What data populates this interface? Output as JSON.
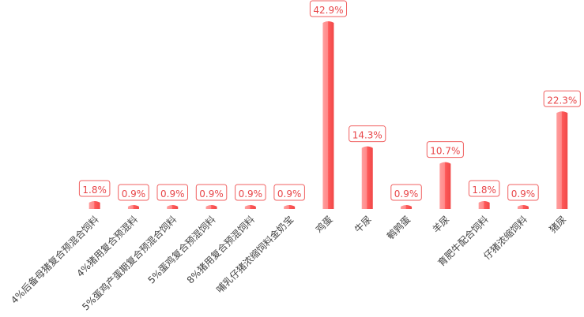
{
  "chart_data": {
    "type": "bar",
    "categories": [
      "4%后备母猪复合预混合饲料",
      "4%猪用复合预混料",
      "5%蛋鸡产蛋期复合预混合饲料",
      "5%蛋鸡复合预混饲料",
      "8%猪用复合预混饲料",
      "哺乳仔猪浓缩饲料金奶宝",
      "鸡蛋",
      "牛尿",
      "鹌鹑蛋",
      "羊尿",
      "育肥牛配合饲料",
      "仔猪浓缩饲料",
      "猪尿"
    ],
    "values": [
      1.8,
      0.9,
      0.9,
      0.9,
      0.9,
      0.9,
      42.9,
      14.3,
      0.9,
      10.7,
      1.8,
      0.9,
      22.3
    ],
    "value_labels": [
      "1.8%",
      "0.9%",
      "0.9%",
      "0.9%",
      "0.9%",
      "0.9%",
      "42.9%",
      "14.3%",
      "0.9%",
      "10.7%",
      "1.8%",
      "0.9%",
      "22.3%"
    ],
    "color": "#ff5a5a"
  }
}
